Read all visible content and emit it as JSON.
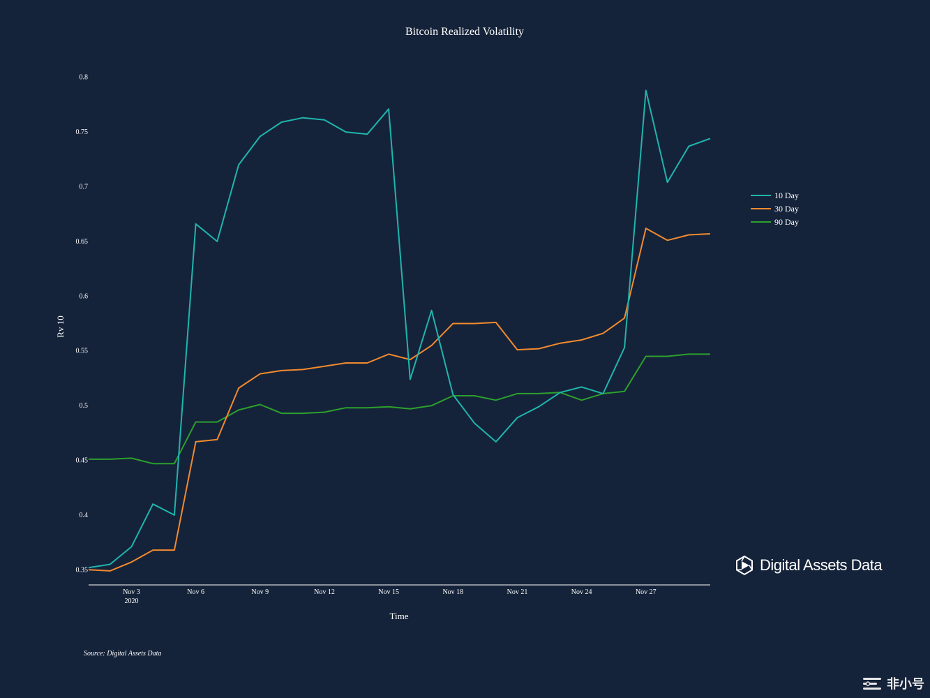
{
  "chart_data": {
    "type": "line",
    "title": "Bitcoin Realized Volatility",
    "xlabel": "Time",
    "ylabel": "Rv 10",
    "x": [
      "2020-11-01",
      "2020-11-02",
      "2020-11-03",
      "2020-11-04",
      "2020-11-05",
      "2020-11-06",
      "2020-11-07",
      "2020-11-08",
      "2020-11-09",
      "2020-11-10",
      "2020-11-11",
      "2020-11-12",
      "2020-11-13",
      "2020-11-14",
      "2020-11-15",
      "2020-11-16",
      "2020-11-17",
      "2020-11-18",
      "2020-11-19",
      "2020-11-20",
      "2020-11-21",
      "2020-11-22",
      "2020-11-23",
      "2020-11-24",
      "2020-11-25",
      "2020-11-26",
      "2020-11-27",
      "2020-11-28",
      "2020-11-29",
      "2020-11-30"
    ],
    "x_ticks": [
      {
        "date": "2020-11-03",
        "label": "Nov 3",
        "sublabel": "2020"
      },
      {
        "date": "2020-11-06",
        "label": "Nov 6"
      },
      {
        "date": "2020-11-09",
        "label": "Nov 9"
      },
      {
        "date": "2020-11-12",
        "label": "Nov 12"
      },
      {
        "date": "2020-11-15",
        "label": "Nov 15"
      },
      {
        "date": "2020-11-18",
        "label": "Nov 18"
      },
      {
        "date": "2020-11-21",
        "label": "Nov 21"
      },
      {
        "date": "2020-11-24",
        "label": "Nov 24"
      },
      {
        "date": "2020-11-27",
        "label": "Nov 27"
      }
    ],
    "y_ticks": [
      0.35,
      0.4,
      0.45,
      0.5,
      0.55,
      0.6,
      0.65,
      0.7,
      0.75,
      0.8
    ],
    "ylim": [
      0.34,
      0.81
    ],
    "xlim": [
      "2020-11-01",
      "2020-11-30"
    ],
    "grid": false,
    "legend_position": "right",
    "series": [
      {
        "name": "10 Day",
        "color": "#1fb5ad",
        "values": [
          0.352,
          0.355,
          0.371,
          0.41,
          0.4,
          0.666,
          0.65,
          0.72,
          0.746,
          0.759,
          0.763,
          0.761,
          0.75,
          0.748,
          0.771,
          0.524,
          0.587,
          0.51,
          0.484,
          0.467,
          0.489,
          0.499,
          0.512,
          0.517,
          0.511,
          0.553,
          0.788,
          0.704,
          0.737,
          0.744
        ]
      },
      {
        "name": "30 Day",
        "color": "#f28a2e",
        "values": [
          0.35,
          0.349,
          0.357,
          0.368,
          0.368,
          0.467,
          0.469,
          0.516,
          0.529,
          0.532,
          0.533,
          0.536,
          0.539,
          0.539,
          0.547,
          0.542,
          0.555,
          0.575,
          0.575,
          0.576,
          0.551,
          0.552,
          0.557,
          0.56,
          0.566,
          0.58,
          0.662,
          0.651,
          0.656,
          0.657
        ]
      },
      {
        "name": "90 Day",
        "color": "#2ca02c",
        "values": [
          0.451,
          0.451,
          0.452,
          0.447,
          0.447,
          0.485,
          0.485,
          0.496,
          0.501,
          0.493,
          0.493,
          0.494,
          0.498,
          0.498,
          0.499,
          0.497,
          0.5,
          0.509,
          0.509,
          0.505,
          0.511,
          0.511,
          0.512,
          0.505,
          0.511,
          0.513,
          0.545,
          0.545,
          0.547,
          0.547
        ]
      }
    ]
  },
  "source_text": "Source: Digital Assets Data",
  "brand": {
    "name": "Digital Assets Data",
    "logo_icon": "hexagon-logo-icon"
  },
  "watermark": {
    "text": "非小号",
    "icon": "bars-icon"
  }
}
